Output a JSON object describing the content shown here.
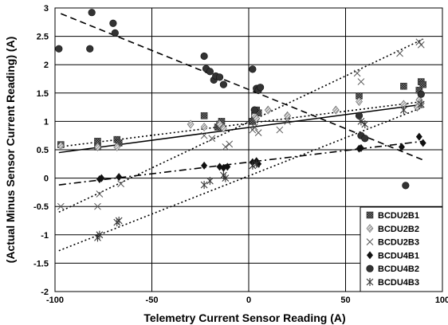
{
  "chart_data": {
    "type": "scatter",
    "xlabel": "Telemetry Current Sensor Reading (A)",
    "ylabel": "(Actual Minus Sensor Current Reading) (A)",
    "xlim": [
      -100,
      100
    ],
    "ylim": [
      -2,
      3
    ],
    "x_ticks": [
      "-100",
      "-50",
      "0",
      "50",
      "100"
    ],
    "y_ticks": [
      "-2",
      "-1.5",
      "-1",
      "-0.5",
      "0",
      "0.5",
      "1",
      "1.5",
      "2",
      "2.5",
      "3"
    ],
    "x_tick_values": [
      -100,
      -50,
      0,
      50,
      100
    ],
    "y_tick_values": [
      -2,
      -1.5,
      -1,
      -0.5,
      0,
      0.5,
      1,
      1.5,
      2,
      2.5,
      3
    ],
    "grid": "horizontal and vertical",
    "legend_position": "bottom-right",
    "series": [
      {
        "name": "BCDU2B1",
        "marker": "checker-square",
        "points": [
          [
            -97,
            0.59
          ],
          [
            -78,
            0.65
          ],
          [
            -78,
            0.55
          ],
          [
            -68,
            0.68
          ],
          [
            -67,
            0.62
          ],
          [
            -23,
            1.1
          ],
          [
            -16,
            0.9
          ],
          [
            -15,
            0.95
          ],
          [
            -14,
            1.0
          ],
          [
            2,
            1.0
          ],
          [
            3,
            1.1
          ],
          [
            4,
            1.2
          ],
          [
            5,
            1.15
          ],
          [
            57,
            1.45
          ],
          [
            80,
            1.62
          ],
          [
            88,
            1.55
          ],
          [
            89,
            1.7
          ],
          [
            90,
            1.65
          ]
        ],
        "trend": [
          [
            -98,
            0.45
          ],
          [
            90,
            1.3
          ]
        ],
        "trend_style": "solid"
      },
      {
        "name": "BCDU2B2",
        "marker": "diamond-hatched",
        "points": [
          [
            -97,
            0.57
          ],
          [
            -78,
            0.55
          ],
          [
            -68,
            0.55
          ],
          [
            -30,
            0.95
          ],
          [
            -23,
            0.9
          ],
          [
            -15,
            0.95
          ],
          [
            -13,
            0.88
          ],
          [
            3,
            1.1
          ],
          [
            4,
            1.05
          ],
          [
            10,
            1.2
          ],
          [
            20,
            1.1
          ],
          [
            45,
            1.2
          ],
          [
            57,
            1.35
          ],
          [
            80,
            1.3
          ],
          [
            87,
            1.25
          ],
          [
            88,
            1.38
          ],
          [
            89,
            1.32
          ]
        ],
        "trend": [
          [
            -98,
            0.55
          ],
          [
            90,
            1.35
          ]
        ],
        "trend_style": "dotted"
      },
      {
        "name": "BCDU2B3",
        "marker": "x",
        "points": [
          [
            -97,
            -0.5
          ],
          [
            -78,
            -0.5
          ],
          [
            -77,
            -0.28
          ],
          [
            -66,
            -0.1
          ],
          [
            -23,
            0.75
          ],
          [
            -19,
            0.7
          ],
          [
            -12,
            0.55
          ],
          [
            -10,
            0.6
          ],
          [
            2,
            0.85
          ],
          [
            3,
            0.9
          ],
          [
            5,
            0.8
          ],
          [
            16,
            0.85
          ],
          [
            20,
            1.0
          ],
          [
            56,
            1.85
          ],
          [
            58,
            1.7
          ],
          [
            78,
            2.2
          ],
          [
            88,
            2.4
          ],
          [
            89,
            2.35
          ]
        ],
        "trend": [
          [
            -98,
            -0.6
          ],
          [
            90,
            2.45
          ]
        ],
        "trend_style": "dotted"
      },
      {
        "name": "BCDU4B1",
        "marker": "diamond",
        "points": [
          [
            -77,
            -0.02
          ],
          [
            -76,
            0.0
          ],
          [
            -67,
            0.02
          ],
          [
            -23,
            0.22
          ],
          [
            -15,
            0.2
          ],
          [
            -13,
            0.18
          ],
          [
            -11,
            0.2
          ],
          [
            2,
            0.28
          ],
          [
            4,
            0.3
          ],
          [
            5,
            0.25
          ],
          [
            57,
            0.52
          ],
          [
            58,
            0.53
          ],
          [
            79,
            0.55
          ],
          [
            88,
            0.73
          ],
          [
            90,
            0.62
          ]
        ],
        "trend": [
          [
            -98,
            -0.12
          ],
          [
            90,
            0.65
          ]
        ],
        "trend_style": "dash-dot"
      },
      {
        "name": "BCDU4B2",
        "marker": "circle",
        "points": [
          [
            -98,
            2.28
          ],
          [
            -82,
            2.28
          ],
          [
            -81,
            2.92
          ],
          [
            -70,
            2.73
          ],
          [
            -69,
            2.56
          ],
          [
            -23,
            2.15
          ],
          [
            -22,
            1.93
          ],
          [
            -20,
            1.88
          ],
          [
            -18,
            1.73
          ],
          [
            -17,
            1.8
          ],
          [
            -15,
            1.78
          ],
          [
            -13,
            1.65
          ],
          [
            2,
            1.92
          ],
          [
            4,
            1.58
          ],
          [
            5,
            1.55
          ],
          [
            6,
            1.6
          ],
          [
            3,
            1.2
          ],
          [
            57,
            1.1
          ],
          [
            58,
            0.75
          ],
          [
            60,
            0.7
          ],
          [
            81,
            -0.13
          ],
          [
            89,
            1.48
          ]
        ],
        "trend": [
          [
            -97,
            2.9
          ],
          [
            90,
            0.32
          ]
        ],
        "trend_style": "dashed"
      },
      {
        "name": "BCDU4B3",
        "marker": "asterisk",
        "points": [
          [
            -78,
            -1.05
          ],
          [
            -77,
            -1.0
          ],
          [
            -68,
            -0.78
          ],
          [
            -67,
            -0.75
          ],
          [
            -23,
            -0.12
          ],
          [
            -20,
            -0.05
          ],
          [
            -13,
            0.05
          ],
          [
            -12,
            0.0
          ],
          [
            2,
            0.22
          ],
          [
            4,
            0.25
          ],
          [
            58,
            1.0
          ],
          [
            60,
            0.95
          ],
          [
            80,
            1.2
          ],
          [
            89,
            1.3
          ]
        ],
        "trend": [
          [
            -98,
            -1.28
          ],
          [
            90,
            1.25
          ]
        ],
        "trend_style": "dotted"
      }
    ]
  }
}
